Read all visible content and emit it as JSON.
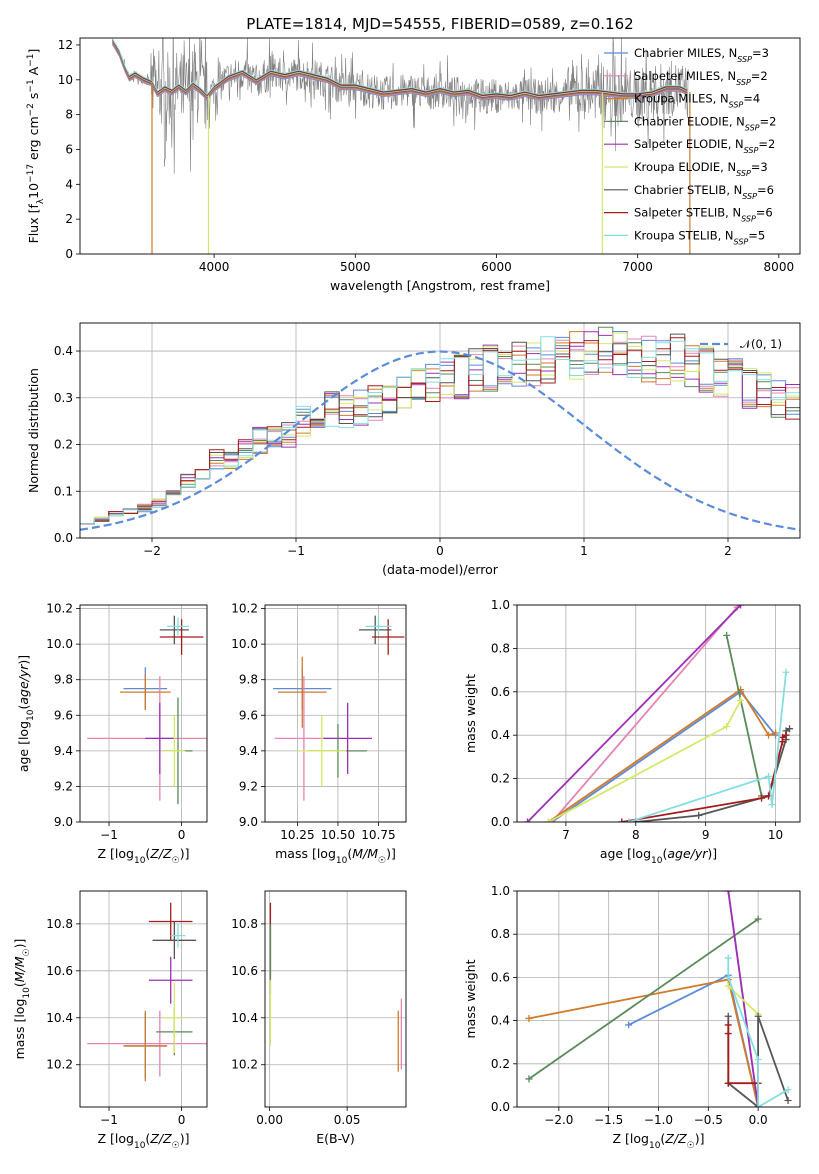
{
  "title": "PLATE=1814, MJD=54555, FIBERID=0589, z=0.162",
  "colors": {
    "chabrier_miles": "#5b8bd9",
    "salpeter_miles": "#e684b4",
    "kroupa_miles": "#d07b2a",
    "chabrier_elodie": "#5a8a5a",
    "salpeter_elodie": "#9b30b5",
    "kroupa_elodie": "#d6e86a",
    "chabrier_stelib": "#555555",
    "salpeter_stelib": "#a51c1c",
    "kroupa_stelib": "#86dde0",
    "data": "#808080",
    "normal": "#5b8bd9"
  },
  "chart_data": [
    {
      "id": "spectrum",
      "type": "line",
      "xlabel": "wavelength [Angstrom, rest frame]",
      "ylabel": "Flux [f_λ 10^-17 erg cm^-2 s^-1 A^-1]",
      "xlim": [
        3050,
        8150
      ],
      "ylim": [
        0,
        12.4
      ],
      "xticks": [
        "4000",
        "5000",
        "6000",
        "7000",
        "8000"
      ],
      "yticks": [
        "0",
        "2",
        "4",
        "6",
        "8",
        "10",
        "12"
      ],
      "legend_position": "top-right",
      "legend": [
        {
          "label": "Chabrier MILES, N",
          "sub": "SSP",
          "n": "=3",
          "key": "chabrier_miles"
        },
        {
          "label": "Salpeter MILES, N",
          "sub": "SSP",
          "n": "=2",
          "key": "salpeter_miles"
        },
        {
          "label": "Kroupa MILES, N",
          "sub": "SSP",
          "n": "=4",
          "key": "kroupa_miles"
        },
        {
          "label": "Chabrier ELODIE, N",
          "sub": "SSP",
          "n": "=2",
          "key": "chabrier_elodie"
        },
        {
          "label": "Salpeter ELODIE, N",
          "sub": "SSP",
          "n": "=2",
          "key": "salpeter_elodie"
        },
        {
          "label": "Kroupa ELODIE, N",
          "sub": "SSP",
          "n": "=3",
          "key": "kroupa_elodie"
        },
        {
          "label": "Chabrier STELIB, N",
          "sub": "SSP",
          "n": "=6",
          "key": "chabrier_stelib"
        },
        {
          "label": "Salpeter STELIB, N",
          "sub": "SSP",
          "n": "=6",
          "key": "salpeter_stelib"
        },
        {
          "label": "Kroupa STELIB, N",
          "sub": "SSP",
          "n": "=5",
          "key": "kroupa_stelib"
        }
      ],
      "model_curve": [
        [
          3280,
          12.2
        ],
        [
          3330,
          11.5
        ],
        [
          3370,
          10.6
        ],
        [
          3400,
          10.1
        ],
        [
          3440,
          10.3
        ],
        [
          3500,
          10.0
        ],
        [
          3560,
          9.8
        ],
        [
          3600,
          9.2
        ],
        [
          3650,
          9.5
        ],
        [
          3700,
          9.3
        ],
        [
          3750,
          9.6
        ],
        [
          3800,
          9.3
        ],
        [
          3850,
          9.7
        ],
        [
          3900,
          9.4
        ],
        [
          3950,
          9.0
        ],
        [
          4000,
          9.5
        ],
        [
          4100,
          10.1
        ],
        [
          4200,
          10.4
        ],
        [
          4300,
          9.9
        ],
        [
          4400,
          10.4
        ],
        [
          4500,
          10.2
        ],
        [
          4600,
          10.4
        ],
        [
          4700,
          10.2
        ],
        [
          4800,
          10.0
        ],
        [
          4900,
          9.6
        ],
        [
          5000,
          9.6
        ],
        [
          5100,
          9.4
        ],
        [
          5200,
          9.2
        ],
        [
          5300,
          9.3
        ],
        [
          5400,
          9.4
        ],
        [
          5500,
          9.2
        ],
        [
          5600,
          9.4
        ],
        [
          5700,
          9.2
        ],
        [
          5800,
          9.3
        ],
        [
          5900,
          9.0
        ],
        [
          6000,
          9.1
        ],
        [
          6100,
          9.0
        ],
        [
          6200,
          9.2
        ],
        [
          6300,
          9.0
        ],
        [
          6400,
          9.1
        ],
        [
          6500,
          9.2
        ],
        [
          6600,
          9.3
        ],
        [
          6700,
          9.3
        ],
        [
          6800,
          9.2
        ],
        [
          6900,
          9.1
        ],
        [
          7000,
          9.1
        ],
        [
          7100,
          9.2
        ],
        [
          7200,
          9.5
        ],
        [
          7300,
          9.5
        ],
        [
          7350,
          9.3
        ]
      ],
      "data_range": [
        3280,
        7360
      ],
      "model_drops": [
        {
          "x": 3560,
          "key": "kroupa_miles"
        },
        {
          "x": 3960,
          "key": "kroupa_elodie"
        },
        {
          "x": 6750,
          "key": "kroupa_elodie"
        },
        {
          "x": 7370,
          "key": "kroupa_miles"
        }
      ]
    },
    {
      "id": "residuals",
      "type": "histogram",
      "xlabel": "(data-model)/error",
      "ylabel": "Normed distribution",
      "xlim": [
        -2.5,
        2.5
      ],
      "ylim": [
        0,
        0.46
      ],
      "xticks": [
        "−2",
        "−1",
        "0",
        "1",
        "2"
      ],
      "yticks": [
        "0.0",
        "0.1",
        "0.2",
        "0.3",
        "0.4"
      ],
      "legend_position": "top-right",
      "normal_label": "𝒩(0, 1)",
      "bin_width": 0.1,
      "bin_start": -2.5,
      "envelope": [
        0.035,
        0.04,
        0.05,
        0.06,
        0.065,
        0.075,
        0.09,
        0.12,
        0.14,
        0.17,
        0.165,
        0.19,
        0.21,
        0.22,
        0.225,
        0.25,
        0.26,
        0.275,
        0.27,
        0.28,
        0.29,
        0.295,
        0.31,
        0.32,
        0.33,
        0.34,
        0.345,
        0.36,
        0.365,
        0.37,
        0.375,
        0.37,
        0.385,
        0.38,
        0.39,
        0.395,
        0.405,
        0.4,
        0.39,
        0.38,
        0.38,
        0.385,
        0.37,
        0.36,
        0.35,
        0.34,
        0.32,
        0.31,
        0.3,
        0.29,
        0.28,
        0.27,
        0.26,
        0.24,
        0.23,
        0.22,
        0.205,
        0.19,
        0.175,
        0.16,
        0.14,
        0.13,
        0.12,
        0.11,
        0.1,
        0.095,
        0.09,
        0.085,
        0.08,
        0.075,
        0.07,
        0.065,
        0.06,
        0.055,
        0.05,
        0.05,
        0.045,
        0.04,
        0.035,
        0.035,
        0.03,
        0.03,
        0.03,
        0.025,
        0.025,
        0.025,
        0.02,
        0.02,
        0.02,
        0.02,
        0.02,
        0.02,
        0.02,
        0.02,
        0.02,
        0.02,
        0.02,
        0.02,
        0.02,
        0.02
      ]
    },
    {
      "id": "age_vs_Z",
      "type": "scatter",
      "xlabel": "Z [log10(Z/Z☉)]",
      "ylabel": "age  [log10(age/yr)]",
      "xlim": [
        -1.4,
        0.35
      ],
      "ylim": [
        9.0,
        10.22
      ],
      "xticks": [
        -1,
        0
      ],
      "yticks": [
        9.0,
        9.2,
        9.4,
        9.6,
        9.8,
        10.0,
        10.2
      ],
      "points": [
        {
          "key": "chabrier_miles",
          "x": -0.5,
          "y": 9.75,
          "xe": 0.3,
          "ye": 0.12
        },
        {
          "key": "salpeter_miles",
          "x": -0.3,
          "y": 9.47,
          "xe": 1.0,
          "ye": 0.35
        },
        {
          "key": "kroupa_miles",
          "x": -0.5,
          "y": 9.73,
          "xe": 0.35,
          "ye": 0.1
        },
        {
          "key": "chabrier_elodie",
          "x": -0.05,
          "y": 9.4,
          "xe": 0.2,
          "ye": 0.3
        },
        {
          "key": "salpeter_elodie",
          "x": -0.3,
          "y": 9.47,
          "xe": 0.2,
          "ye": 0.2
        },
        {
          "key": "kroupa_elodie",
          "x": -0.1,
          "y": 9.4,
          "xe": 0.15,
          "ye": 0.2
        },
        {
          "key": "chabrier_stelib",
          "x": -0.1,
          "y": 10.08,
          "xe": 0.2,
          "ye": 0.08
        },
        {
          "key": "salpeter_stelib",
          "x": 0.0,
          "y": 10.04,
          "xe": 0.3,
          "ye": 0.1
        },
        {
          "key": "kroupa_stelib",
          "x": -0.05,
          "y": 10.1,
          "xe": 0.15,
          "ye": 0.05
        }
      ]
    },
    {
      "id": "age_vs_mass",
      "type": "scatter",
      "xlabel": "mass [log10(M/M☉)]",
      "ylabel": "",
      "xlim": [
        10.05,
        10.92
      ],
      "ylim": [
        9.0,
        10.22
      ],
      "xticks": [
        10.25,
        10.5,
        10.75
      ],
      "yticks": [
        9.0,
        9.2,
        9.4,
        9.6,
        9.8,
        10.0,
        10.2
      ],
      "points": [
        {
          "key": "chabrier_miles",
          "x": 10.28,
          "y": 9.75,
          "xe": 0.18,
          "ye": 0.12
        },
        {
          "key": "salpeter_miles",
          "x": 10.29,
          "y": 9.47,
          "xe": 0.18,
          "ye": 0.35
        },
        {
          "key": "kroupa_miles",
          "x": 10.28,
          "y": 9.73,
          "xe": 0.15,
          "ye": 0.2
        },
        {
          "key": "chabrier_elodie",
          "x": 10.5,
          "y": 9.4,
          "xe": 0.18,
          "ye": 0.15
        },
        {
          "key": "salpeter_elodie",
          "x": 10.56,
          "y": 9.47,
          "xe": 0.15,
          "ye": 0.2
        },
        {
          "key": "kroupa_elodie",
          "x": 10.4,
          "y": 9.4,
          "xe": 0.15,
          "ye": 0.2
        },
        {
          "key": "chabrier_stelib",
          "x": 10.73,
          "y": 10.08,
          "xe": 0.1,
          "ye": 0.08
        },
        {
          "key": "salpeter_stelib",
          "x": 10.81,
          "y": 10.04,
          "xe": 0.1,
          "ye": 0.1
        },
        {
          "key": "kroupa_stelib",
          "x": 10.75,
          "y": 10.1,
          "xe": 0.08,
          "ye": 0.05
        }
      ]
    },
    {
      "id": "weight_vs_age",
      "type": "line",
      "xlabel": "age  [log10(age/yr)]",
      "ylabel": "mass weight",
      "xlim": [
        6.3,
        10.35
      ],
      "ylim": [
        0,
        1
      ],
      "xticks": [
        7,
        8,
        9,
        10
      ],
      "yticks": [
        0.0,
        0.2,
        0.4,
        0.6,
        0.8,
        1.0
      ],
      "series": [
        {
          "key": "chabrier_miles",
          "x": [
            6.8,
            9.5,
            10.0
          ],
          "y": [
            0.0,
            0.6,
            0.4
          ]
        },
        {
          "key": "salpeter_miles",
          "x": [
            6.8,
            9.45
          ],
          "y": [
            0.0,
            0.99
          ]
        },
        {
          "key": "kroupa_miles",
          "x": [
            6.75,
            9.5,
            9.9,
            10.0
          ],
          "y": [
            0.0,
            0.61,
            0.4,
            0.41
          ]
        },
        {
          "key": "chabrier_elodie",
          "x": [
            9.3,
            9.8
          ],
          "y": [
            0.86,
            0.12
          ]
        },
        {
          "key": "salpeter_elodie",
          "x": [
            6.45,
            9.5
          ],
          "y": [
            0.0,
            1.0
          ]
        },
        {
          "key": "kroupa_elodie",
          "x": [
            6.75,
            9.3,
            9.5
          ],
          "y": [
            0.0,
            0.44,
            0.56
          ]
        },
        {
          "key": "chabrier_stelib",
          "x": [
            7.8,
            8.0,
            8.9,
            9.9,
            10.15,
            10.15,
            10.2
          ],
          "y": [
            0.0,
            0.0,
            0.03,
            0.12,
            0.38,
            0.42,
            0.43
          ]
        },
        {
          "key": "salpeter_stelib",
          "x": [
            7.8,
            9.8,
            9.9,
            10.1,
            10.1,
            10.15
          ],
          "y": [
            0.0,
            0.11,
            0.12,
            0.37,
            0.39,
            0.4
          ]
        },
        {
          "key": "kroupa_stelib",
          "x": [
            7.9,
            9.9,
            9.95,
            10.15
          ],
          "y": [
            0.0,
            0.21,
            0.08,
            0.69
          ]
        }
      ]
    },
    {
      "id": "mass_vs_Z",
      "type": "scatter",
      "xlabel": "Z [log10(Z/Z☉)]",
      "ylabel": "mass [log10(M/M☉)]",
      "xlim": [
        -1.4,
        0.35
      ],
      "ylim": [
        10.02,
        10.94
      ],
      "xticks": [
        -1,
        0
      ],
      "yticks": [
        10.2,
        10.4,
        10.6,
        10.8
      ],
      "points": [
        {
          "key": "chabrier_miles",
          "x": -0.5,
          "y": 10.28,
          "xe": 0.3,
          "ye": 0.14
        },
        {
          "key": "salpeter_miles",
          "x": -0.3,
          "y": 10.29,
          "xe": 1.0,
          "ye": 0.14
        },
        {
          "key": "kroupa_miles",
          "x": -0.5,
          "y": 10.28,
          "xe": 0.3,
          "ye": 0.15
        },
        {
          "key": "chabrier_elodie",
          "x": -0.1,
          "y": 10.34,
          "xe": 0.25,
          "ye": 0.1
        },
        {
          "key": "salpeter_elodie",
          "x": -0.15,
          "y": 10.56,
          "xe": 0.3,
          "ye": 0.1
        },
        {
          "key": "kroupa_elodie",
          "x": -0.1,
          "y": 10.4,
          "xe": 0.15,
          "ye": 0.15
        },
        {
          "key": "chabrier_stelib",
          "x": -0.1,
          "y": 10.73,
          "xe": 0.3,
          "ye": 0.08
        },
        {
          "key": "salpeter_stelib",
          "x": -0.15,
          "y": 10.81,
          "xe": 0.3,
          "ye": 0.08
        },
        {
          "key": "kroupa_stelib",
          "x": -0.05,
          "y": 10.75,
          "xe": 0.1,
          "ye": 0.05
        }
      ]
    },
    {
      "id": "mass_vs_ebv",
      "type": "scatter",
      "xlabel": "E(B-V)",
      "ylabel": "",
      "xlim": [
        -0.003,
        0.088
      ],
      "ylim": [
        10.02,
        10.94
      ],
      "xticks": [
        0.0,
        0.05
      ],
      "yticks": [
        10.2,
        10.4,
        10.6,
        10.8
      ],
      "points": [
        {
          "key": "salpeter_stelib",
          "x": 0.0005,
          "y": 10.73,
          "xe": 0,
          "ye": 0.16
        },
        {
          "key": "chabrier_elodie",
          "x": 0.0005,
          "y": 10.65,
          "xe": 0,
          "ye": 0.15
        },
        {
          "key": "kroupa_elodie",
          "x": 0.0005,
          "y": 10.42,
          "xe": 0,
          "ye": 0.14
        },
        {
          "key": "kroupa_miles",
          "x": 0.083,
          "y": 10.3,
          "xe": 0,
          "ye": 0.13
        },
        {
          "key": "salpeter_miles",
          "x": 0.085,
          "y": 10.33,
          "xe": 0,
          "ye": 0.15
        }
      ]
    },
    {
      "id": "weight_vs_Z",
      "type": "line",
      "xlabel": "Z [log10(Z/Z☉)]",
      "ylabel": "mass weight",
      "xlim": [
        -2.42,
        0.42
      ],
      "ylim": [
        0,
        1
      ],
      "xticks": [
        -2.0,
        -1.5,
        -1.0,
        -0.5,
        0.0
      ],
      "yticks": [
        0.0,
        0.2,
        0.4,
        0.6,
        0.8,
        1.0
      ],
      "series": [
        {
          "key": "chabrier_miles",
          "x": [
            -1.3,
            -0.3,
            0.0
          ],
          "y": [
            0.38,
            0.61,
            0.0
          ]
        },
        {
          "key": "salpeter_miles",
          "x": [
            -0.3,
            0.0
          ],
          "y": [
            1.0,
            0.0
          ]
        },
        {
          "key": "kroupa_miles",
          "x": [
            -2.3,
            -0.3,
            0.0
          ],
          "y": [
            0.41,
            0.59,
            0.0
          ]
        },
        {
          "key": "chabrier_elodie",
          "x": [
            -2.3,
            0.0
          ],
          "y": [
            0.13,
            0.87
          ]
        },
        {
          "key": "salpeter_elodie",
          "x": [
            -0.3,
            0.0
          ],
          "y": [
            1.0,
            0.0
          ]
        },
        {
          "key": "kroupa_elodie",
          "x": [
            -0.3,
            0.0
          ],
          "y": [
            0.56,
            0.43
          ]
        },
        {
          "key": "chabrier_stelib",
          "x": [
            -0.3,
            -0.3,
            0.0,
            0.0,
            0.3
          ],
          "y": [
            0.42,
            0.11,
            0.0,
            0.42,
            0.03
          ]
        },
        {
          "key": "salpeter_stelib",
          "x": [
            -0.3,
            -0.3,
            -0.3,
            0.0,
            0.0
          ],
          "y": [
            0.38,
            0.34,
            0.11,
            0.11,
            0.0
          ]
        },
        {
          "key": "kroupa_stelib",
          "x": [
            -0.3,
            -0.3,
            0.0,
            0.0,
            0.3
          ],
          "y": [
            0.69,
            0.6,
            0.22,
            0.0,
            0.08
          ]
        }
      ]
    }
  ]
}
